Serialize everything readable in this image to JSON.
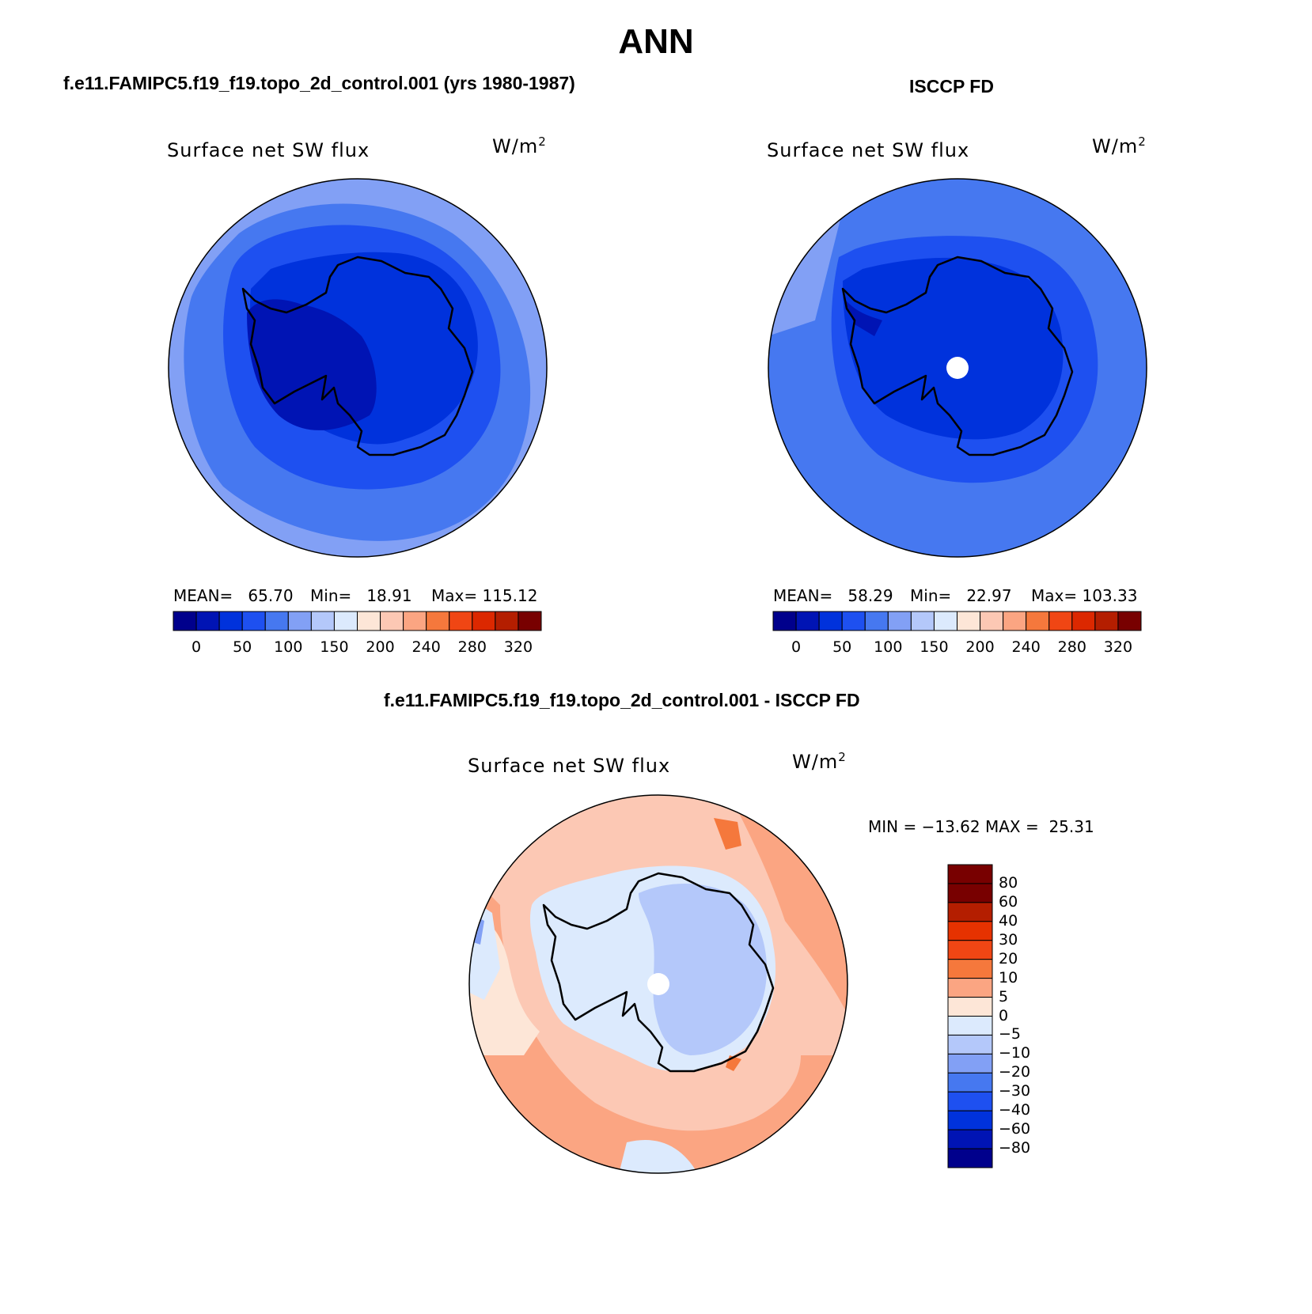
{
  "page_title": "ANN",
  "panels": [
    {
      "case_title": "f.e11.FAMIPC5.f19_f19.topo_2d_control.001 (yrs 1980-1987)",
      "variable": "Surface net SW flux",
      "units_base": "W/m",
      "units_exp": "2",
      "mean_label": "MEAN=",
      "mean_value": "65.70",
      "min_label": "Min=",
      "min_value": "18.91",
      "max_label": "Max=",
      "max_value": "115.12",
      "colorbar_ticks": [
        "0",
        "50",
        "100",
        "150",
        "200",
        "240",
        "280",
        "320"
      ]
    },
    {
      "case_title": "ISCCP FD",
      "variable": "Surface net SW flux",
      "units_base": "W/m",
      "units_exp": "2",
      "mean_label": "MEAN=",
      "mean_value": "58.29",
      "min_label": "Min=",
      "min_value": "22.97",
      "max_label": "Max=",
      "max_value": "103.33",
      "colorbar_ticks": [
        "0",
        "50",
        "100",
        "150",
        "200",
        "240",
        "280",
        "320"
      ]
    }
  ],
  "diff_panel": {
    "case_title": "f.e11.FAMIPC5.f19_f19.topo_2d_control.001 - ISCCP FD",
    "variable": "Surface net SW flux",
    "units_base": "W/m",
    "units_exp": "2",
    "min_label": "MIN =",
    "min_value": "−13.62",
    "max_label": "MAX =",
    "max_value": "25.31",
    "colorbar_ticks": [
      "80",
      "60",
      "40",
      "30",
      "20",
      "10",
      "5",
      "0",
      "−5",
      "−10",
      "−20",
      "−30",
      "−40",
      "−60",
      "−80"
    ]
  },
  "colors": {
    "abs_scale": [
      "#00008c",
      "#0014b4",
      "#0032dc",
      "#1e50f0",
      "#4678f0",
      "#82a0f5",
      "#b4c8fa",
      "#dceafd",
      "#fde6d7",
      "#fcc8b4",
      "#fba582",
      "#f5783c",
      "#f04614",
      "#dc2800",
      "#b41e00",
      "#780000"
    ],
    "diff_scale": [
      "#00008c",
      "#0014b4",
      "#0032dc",
      "#1e50f0",
      "#4678f0",
      "#82a0f5",
      "#b4c8fa",
      "#dceafd",
      "#fde6d7",
      "#fba582",
      "#f5783c",
      "#f04614",
      "#e63200",
      "#b41e00",
      "#780000"
    ]
  }
}
